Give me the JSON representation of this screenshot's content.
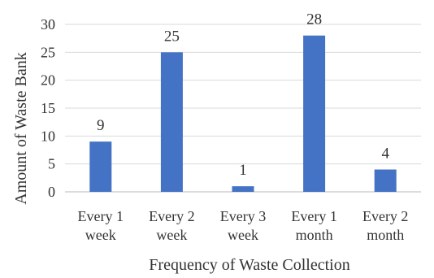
{
  "chart_data": {
    "type": "bar",
    "categories": [
      [
        "Every 1",
        "week"
      ],
      [
        "Every 2",
        "week"
      ],
      [
        "Every 3",
        "week"
      ],
      [
        "Every 1",
        "month"
      ],
      [
        "Every 2",
        "month"
      ]
    ],
    "values": [
      9,
      25,
      1,
      28,
      4
    ],
    "xlabel": "Frequency of Waste Collection",
    "ylabel": "Amount of Waste Bank",
    "ylim": [
      0,
      30
    ],
    "yticks": [
      0,
      5,
      10,
      15,
      20,
      25,
      30
    ],
    "grid": true,
    "legend": "none",
    "bar_color": "#4472c4"
  }
}
